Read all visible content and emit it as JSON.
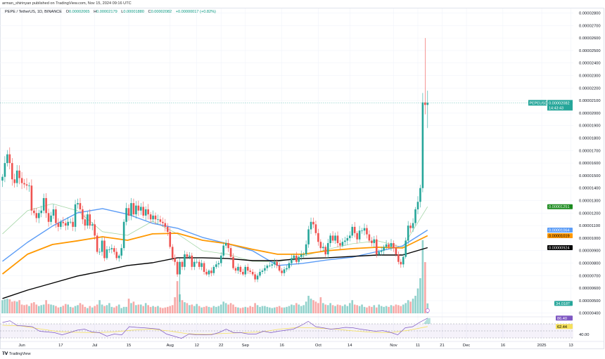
{
  "published": "arman_shirinyan published on TradingView.com, Nov 15, 2024 09:16 UTC",
  "legend": {
    "symbol": "PEPE / TetherUS, 1D, BINANCE",
    "o_label": "O",
    "o": "0.00002065",
    "h_label": "H",
    "h": "0.00002179",
    "l_label": "L",
    "l": "0.00001880",
    "c_label": "C",
    "c": "0.00002082",
    "change": "+0.00000017 (+0.82%)"
  },
  "footer": {
    "logo": "TradingView"
  },
  "colors": {
    "up": "#26a69a",
    "down": "#ef5350",
    "grid": "#f0f3fa",
    "rsi": "#7e57c2",
    "rsi_ma": "#f5e05a"
  },
  "chart_data": {
    "type": "candlestick",
    "symbol": "PEPEUSDT",
    "start_date": "2024-05-24",
    "xlim": [
      "2024-05-23",
      "2025-01-14"
    ],
    "ylim": [
      3.76e-06,
      2.904e-05
    ],
    "first_open": 1.46e-05,
    "closes": [
      1.49e-05,
      1.6e-05,
      1.67e-05,
      1.6e-05,
      1.47e-05,
      1.44e-05,
      1.54e-05,
      1.48e-05,
      1.44e-05,
      1.43e-05,
      1.42e-05,
      1.42e-05,
      1.22e-05,
      1.2e-05,
      1.16e-05,
      1.2e-05,
      1.22e-05,
      1.32e-05,
      1.2e-05,
      1.13e-05,
      1.18e-05,
      1.23e-05,
      1.12e-05,
      1.09e-05,
      1.13e-05,
      1.12e-05,
      1.1e-05,
      1.13e-05,
      1.13e-05,
      1.09e-05,
      1.27e-05,
      1.28e-05,
      1.23e-05,
      1.15e-05,
      1.1e-05,
      1.19e-05,
      1.1e-05,
      1.11e-05,
      1.02e-05,
      8.9e-06,
      8.9e-06,
      9.8e-06,
      8.4e-06,
      9.1e-06,
      9.1e-06,
      9.2e-06,
      8.9e-06,
      8.4e-06,
      8.6e-06,
      9.2e-06,
      1.13e-05,
      1.24e-05,
      1.18e-05,
      1.28e-05,
      1.19e-05,
      1.26e-05,
      1.22e-05,
      1.25e-05,
      1.18e-05,
      1.23e-05,
      1.19e-05,
      1.15e-05,
      1.18e-05,
      1.15e-05,
      1.15e-05,
      1.13e-05,
      1.12e-05,
      1.09e-05,
      1.05e-05,
      9.3e-06,
      8.4e-06,
      8.1e-06,
      7.1e-06,
      8.1e-06,
      7.7e-06,
      8.7e-06,
      8.5e-06,
      8.6e-06,
      7.7e-06,
      8.1e-06,
      8.1e-06,
      7.7e-06,
      8e-06,
      7.3e-06,
      7.1e-06,
      7.4e-06,
      7.2e-06,
      7.7e-06,
      7.9e-06,
      8e-06,
      8.6e-06,
      9.4e-06,
      9.6e-06,
      9.2e-06,
      8.5e-06,
      7.6e-06,
      7.4e-06,
      7.7e-06,
      7.3e-06,
      7.1e-06,
      7.7e-06,
      7.4e-06,
      7.3e-06,
      7.1e-06,
      6.7e-06,
      7e-06,
      7.3e-06,
      7.4e-06,
      7.6e-06,
      7.8e-06,
      7.8e-06,
      7.9e-06,
      8.1e-06,
      7.8e-06,
      7.4e-06,
      7.2e-06,
      7.5e-06,
      7.6e-06,
      8e-06,
      8.4e-06,
      8.6e-06,
      8.1e-06,
      8.5e-06,
      8.7e-06,
      8.7e-06,
      9.5e-06,
      1.07e-05,
      1.13e-05,
      1.11e-05,
      1.04e-05,
      9.7e-06,
      9.2e-06,
      9.3e-06,
      8.7e-06,
      9.6e-06,
      1.02e-05,
      9.8e-06,
      1.02e-05,
      9.6e-06,
      9.4e-06,
      9.7e-06,
      9.8e-06,
      1e-05,
      1.02e-05,
      1.09e-05,
      1.04e-05,
      9.9e-06,
      1.06e-05,
      1.06e-05,
      1.08e-05,
      1.03e-05,
      9.8e-06,
      9.6e-06,
      9.9e-06,
      8.7e-06,
      8.9e-06,
      9e-06,
      9.3e-06,
      9.5e-06,
      9.3e-06,
      9.6e-06,
      9.2e-06,
      8.7e-06,
      8.1e-06,
      7.9e-06,
      8.5e-06,
      9.8e-06,
      1.1e-05,
      1.08e-05,
      1.12e-05,
      1.23e-05,
      1.29e-05,
      1.4e-05,
      2.085e-05,
      2.065e-05,
      2.082e-05
    ],
    "wicks": [
      {
        "date": "2024-08-05",
        "low": 4.9e-06
      },
      {
        "date": "2024-11-13",
        "high": 2.16e-05
      },
      {
        "date": "2024-11-14",
        "high": 2.6e-05,
        "low": 1.99e-05
      },
      {
        "date": "2024-11-15",
        "high": 2.179e-05,
        "low": 1.88e-05
      }
    ],
    "volume_unit": "T",
    "volume": [
      45,
      48,
      50,
      48,
      40,
      42,
      40,
      45,
      30,
      28,
      30,
      25,
      35,
      38,
      30,
      25,
      28,
      30,
      45,
      32,
      30,
      28,
      25,
      20,
      22,
      26,
      32,
      30,
      22,
      20,
      25,
      28,
      35,
      30,
      22,
      18,
      25,
      20,
      25,
      30,
      45,
      30,
      25,
      28,
      35,
      22,
      20,
      25,
      30,
      18,
      22,
      22,
      50,
      35,
      40,
      28,
      30,
      30,
      25,
      35,
      28,
      22,
      25,
      22,
      25,
      20,
      18,
      20,
      22,
      25,
      28,
      55,
      110,
      65,
      45,
      38,
      35,
      28,
      30,
      25,
      32,
      25,
      20,
      22,
      25,
      22,
      20,
      25,
      22,
      25,
      30,
      40,
      35,
      30,
      35,
      30,
      22,
      20,
      18,
      20,
      22,
      20,
      25,
      22,
      35,
      28,
      22,
      25,
      25,
      22,
      20,
      18,
      20,
      22,
      25,
      20,
      20,
      22,
      25,
      30,
      28,
      35,
      30,
      25,
      28,
      40,
      60,
      50,
      45,
      40,
      35,
      55,
      35,
      30,
      28,
      35,
      28,
      25,
      30,
      28,
      25,
      30,
      25,
      35,
      45,
      30,
      28,
      25,
      30,
      22,
      20,
      25,
      22,
      28,
      20,
      30,
      25,
      22,
      25,
      22,
      28,
      25,
      30,
      28,
      25,
      30,
      35,
      45,
      40,
      50,
      60,
      85,
      120,
      250,
      175,
      34.018
    ],
    "moving_averages": [
      {
        "color": "#a5d6a7",
        "last": "0.00001251",
        "values": [
          1.034e-05,
          1.219e-05,
          1.275e-05,
          1.219e-05,
          1.051e-05,
          1.022e-05,
          1.135e-05,
          1.034e-05,
          8.99e-06,
          8.71e-06,
          8.15e-06,
          8.09e-06,
          8.54e-06,
          9.1e-06,
          9.55e-06,
          9.78e-06,
          9.27e-06,
          1.251e-05
        ],
        "width": 0.8
      },
      {
        "color": "#5b9cf6",
        "last": "0.00001064",
        "values": [
          8.15e-06,
          9.66e-06,
          1.096e-05,
          1.202e-05,
          1.236e-05,
          1.191e-05,
          1.118e-05,
          1.079e-05,
          1.006e-05,
          9.55e-06,
          8.99e-06,
          7.81e-06,
          7.98e-06,
          8.26e-06,
          8.48e-06,
          8.93e-06,
          9.38e-06,
          1.064e-05
        ],
        "width": 1.4
      },
      {
        "color": "#ff9800",
        "last": "0.00001019",
        "values": [
          7.13e-06,
          8.71e-06,
          9.49e-06,
          9.78e-06,
          1.011e-05,
          9.83e-06,
          1.034e-05,
          1.039e-05,
          9.83e-06,
          9.55e-06,
          9.1e-06,
          8.71e-06,
          8.71e-06,
          8.99e-06,
          9.16e-06,
          9.27e-06,
          9.21e-06,
          1.019e-05
        ],
        "width": 1.8
      },
      {
        "color": "#000000",
        "last": "0.00000924",
        "values": [
          5.17e-06,
          5.84e-06,
          6.4e-06,
          6.97e-06,
          7.36e-06,
          7.81e-06,
          8.03e-06,
          8.43e-06,
          8.43e-06,
          8.37e-06,
          8.2e-06,
          8.2e-06,
          8.37e-06,
          8.43e-06,
          8.54e-06,
          8.65e-06,
          8.65e-06,
          9.24e-06
        ],
        "width": 1.4
      }
    ],
    "price_ticks": [
      "0.00000400",
      "0.00000500",
      "0.00000600",
      "0.00000700",
      "0.00000800",
      "0.00000900",
      "0.00001000",
      "0.00001100",
      "0.00001200",
      "0.00001300",
      "0.00001400",
      "0.00001500",
      "0.00001600",
      "0.00001700",
      "0.00001800",
      "0.00001900",
      "0.00002000",
      "0.00002100",
      "0.00002200",
      "0.00002300",
      "0.00002400",
      "0.00002500",
      "0.00002600",
      "0.00002700",
      "0.00002800"
    ],
    "x_ticks": [
      {
        "label": "Jun",
        "date": "2024-06-01"
      },
      {
        "label": "17",
        "date": "2024-06-17"
      },
      {
        "label": "Jul",
        "date": "2024-07-01"
      },
      {
        "label": "15",
        "date": "2024-07-15"
      },
      {
        "label": "Aug",
        "date": "2024-08-01"
      },
      {
        "label": "12",
        "date": "2024-08-12"
      },
      {
        "label": "22",
        "date": "2024-08-22"
      },
      {
        "label": "Sep",
        "date": "2024-09-01"
      },
      {
        "label": "16",
        "date": "2024-09-16"
      },
      {
        "label": "Oct",
        "date": "2024-10-01"
      },
      {
        "label": "14",
        "date": "2024-10-14"
      },
      {
        "label": "Nov",
        "date": "2024-11-01"
      },
      {
        "label": "11",
        "date": "2024-11-11"
      },
      {
        "label": "21",
        "date": "2024-11-21"
      },
      {
        "label": "Dec",
        "date": "2024-12-01"
      },
      {
        "label": "16",
        "date": "2024-12-16"
      },
      {
        "label": "2025",
        "date": "2025-01-01"
      },
      {
        "label": "13",
        "date": "2025-01-13"
      }
    ],
    "last_price_tag": {
      "symbol": "PEPEUSDT",
      "price": "0.00002082",
      "countdown": "14:43:43"
    },
    "volume_tag": "34.018T",
    "rsi": {
      "ylim": [
        20,
        90
      ],
      "bands": [
        70,
        50,
        30
      ],
      "tick": "40.00",
      "last": "86.40",
      "ma_last": "62.44",
      "values": [
        74,
        78.7,
        65,
        64,
        62,
        49,
        47,
        45,
        38.7,
        45,
        52,
        55,
        47,
        45,
        35,
        41,
        38.7,
        62,
        60,
        58.7,
        57,
        55,
        41,
        35,
        28.7,
        41,
        39,
        38.7,
        39,
        45,
        55,
        45,
        45,
        41,
        41,
        49,
        45,
        49,
        52,
        55,
        65,
        77.3,
        62,
        58.7,
        55,
        57,
        60,
        58.7,
        55,
        52,
        49,
        50.7,
        46,
        38.7,
        58.7,
        62,
        75.3,
        86.4
      ],
      "ma_values": [
        66,
        64,
        56,
        48,
        46,
        45,
        47,
        52,
        55,
        50,
        42,
        40,
        43,
        45,
        47,
        55,
        60,
        58,
        55,
        50,
        46,
        45,
        52,
        62.44
      ]
    }
  }
}
